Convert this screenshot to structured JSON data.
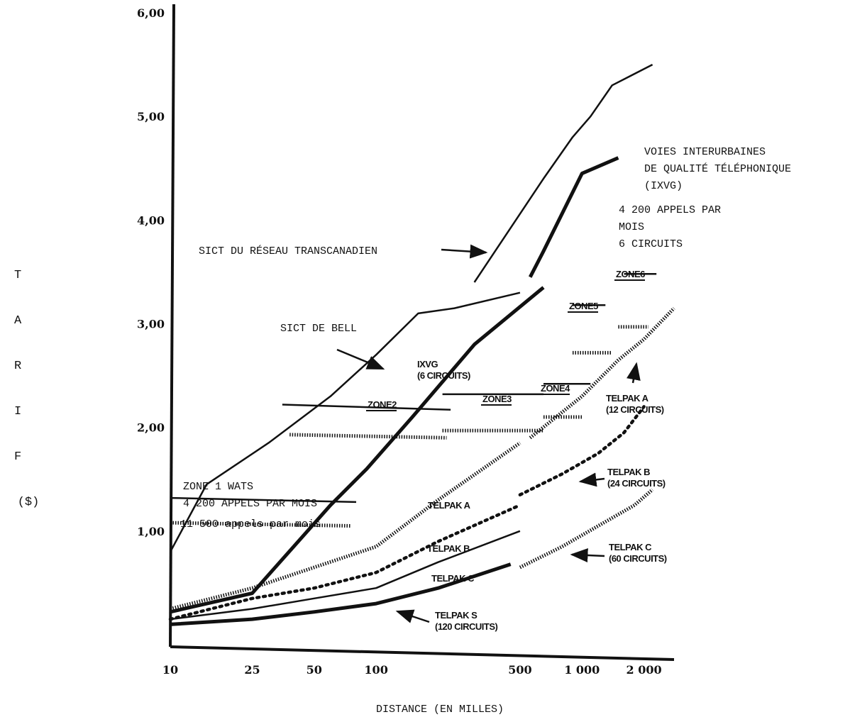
{
  "chart_data": {
    "type": "line",
    "title": "",
    "xlabel": "DISTANCE (EN MILLES)",
    "ylabel": "TARIF ($)",
    "x_scale": "log",
    "xlim": [
      10,
      2800
    ],
    "ylim": [
      0,
      6.0
    ],
    "x_ticks": [
      {
        "value": 10,
        "label": "10"
      },
      {
        "value": 25,
        "label": "25"
      },
      {
        "value": 50,
        "label": "50"
      },
      {
        "value": 100,
        "label": "100"
      },
      {
        "value": 500,
        "label": "500"
      },
      {
        "value": 1000,
        "label": "1 000"
      },
      {
        "value": 2000,
        "label": "2 000"
      }
    ],
    "y_ticks": [
      {
        "value": 1,
        "label": "1,00"
      },
      {
        "value": 2,
        "label": "2,00"
      },
      {
        "value": 3,
        "label": "3,00"
      },
      {
        "value": 4,
        "label": "4,00"
      },
      {
        "value": 5,
        "label": "5,00"
      },
      {
        "value": 6,
        "label": "6,00"
      }
    ],
    "grid": false,
    "series": [
      {
        "id": "sict-transcanadien",
        "style": "solid",
        "points": [
          [
            300,
            3.4
          ],
          [
            650,
            4.4
          ],
          [
            900,
            4.8
          ],
          [
            1100,
            5.0
          ],
          [
            1400,
            5.3
          ],
          [
            2200,
            5.5
          ]
        ]
      },
      {
        "id": "ixvg-4200",
        "style": "bold",
        "points": [
          [
            560,
            3.45
          ],
          [
            650,
            3.7
          ],
          [
            1000,
            4.45
          ],
          [
            1500,
            4.6
          ]
        ]
      },
      {
        "id": "sict-bell",
        "style": "solid",
        "points": [
          [
            10,
            0.8
          ],
          [
            15,
            1.45
          ],
          [
            30,
            1.85
          ],
          [
            60,
            2.3
          ],
          [
            100,
            2.7
          ],
          [
            160,
            3.1
          ],
          [
            240,
            3.15
          ],
          [
            500,
            3.3
          ]
        ]
      },
      {
        "id": "ixvg-6",
        "style": "bold",
        "points": [
          [
            10,
            0.22
          ],
          [
            25,
            0.4
          ],
          [
            60,
            1.25
          ],
          [
            90,
            1.6
          ],
          [
            150,
            2.1
          ],
          [
            300,
            2.8
          ],
          [
            650,
            3.35
          ]
        ]
      },
      {
        "id": "wats-4200",
        "style": "solid",
        "points": [
          [
            10,
            1.32
          ],
          [
            80,
            1.28
          ]
        ]
      },
      {
        "id": "wats-11500",
        "style": "hatched",
        "points": [
          [
            10,
            1.08
          ],
          [
            75,
            1.05
          ]
        ]
      },
      {
        "id": "zone2-solid",
        "style": "solid",
        "points": [
          [
            35,
            2.22
          ],
          [
            230,
            2.17
          ]
        ]
      },
      {
        "id": "zone2-hatched",
        "style": "hatched",
        "points": [
          [
            38,
            1.93
          ],
          [
            220,
            1.9
          ]
        ]
      },
      {
        "id": "zone3-solid",
        "style": "solid",
        "points": [
          [
            210,
            2.32
          ],
          [
            650,
            2.32
          ]
        ]
      },
      {
        "id": "zone3-hatched",
        "style": "hatched",
        "points": [
          [
            210,
            1.97
          ],
          [
            650,
            1.97
          ]
        ]
      },
      {
        "id": "zone4-solid",
        "style": "solid",
        "points": [
          [
            650,
            2.42
          ],
          [
            1100,
            2.42
          ]
        ]
      },
      {
        "id": "zone4-hatched",
        "style": "hatched",
        "points": [
          [
            650,
            2.1
          ],
          [
            1000,
            2.1
          ]
        ]
      },
      {
        "id": "zone5-solid",
        "style": "solid",
        "points": [
          [
            900,
            3.18
          ],
          [
            1300,
            3.18
          ]
        ]
      },
      {
        "id": "zone5-hatched",
        "style": "hatched",
        "points": [
          [
            900,
            2.72
          ],
          [
            1400,
            2.72
          ]
        ]
      },
      {
        "id": "zone6-solid",
        "style": "solid",
        "points": [
          [
            1600,
            3.48
          ],
          [
            2300,
            3.48
          ]
        ]
      },
      {
        "id": "zone6-hatched",
        "style": "hatched",
        "points": [
          [
            1500,
            2.97
          ],
          [
            2100,
            2.97
          ]
        ]
      },
      {
        "id": "telpak-a",
        "style": "hatched",
        "points": [
          [
            10,
            0.25
          ],
          [
            25,
            0.45
          ],
          [
            50,
            0.65
          ],
          [
            100,
            0.85
          ],
          [
            200,
            1.3
          ],
          [
            500,
            1.85
          ]
        ]
      },
      {
        "id": "telpak-a-right",
        "style": "hatched",
        "points": [
          [
            560,
            1.9
          ],
          [
            1000,
            2.3
          ],
          [
            1500,
            2.65
          ],
          [
            2000,
            2.85
          ],
          [
            2800,
            3.15
          ]
        ]
      },
      {
        "id": "telpak-b",
        "style": "dotted",
        "points": [
          [
            10,
            0.15
          ],
          [
            25,
            0.35
          ],
          [
            50,
            0.45
          ],
          [
            100,
            0.6
          ],
          [
            200,
            0.9
          ],
          [
            500,
            1.25
          ]
        ]
      },
      {
        "id": "telpak-b-right",
        "style": "dotted",
        "points": [
          [
            500,
            1.35
          ],
          [
            800,
            1.55
          ],
          [
            1200,
            1.75
          ],
          [
            1600,
            1.95
          ],
          [
            2000,
            2.2
          ]
        ]
      },
      {
        "id": "telpak-c",
        "style": "solid",
        "points": [
          [
            10,
            0.15
          ],
          [
            25,
            0.25
          ],
          [
            50,
            0.35
          ],
          [
            100,
            0.45
          ],
          [
            200,
            0.7
          ],
          [
            500,
            1.0
          ]
        ]
      },
      {
        "id": "telpak-c-right",
        "style": "hatched",
        "points": [
          [
            500,
            0.65
          ],
          [
            800,
            0.85
          ],
          [
            1200,
            1.05
          ],
          [
            1800,
            1.25
          ],
          [
            2200,
            1.4
          ]
        ]
      },
      {
        "id": "telpak-s",
        "style": "bold",
        "points": [
          [
            10,
            0.1
          ],
          [
            25,
            0.15
          ],
          [
            50,
            0.22
          ],
          [
            100,
            0.3
          ],
          [
            200,
            0.45
          ],
          [
            450,
            0.68
          ]
        ]
      }
    ],
    "annotations": [
      {
        "id": "ann-transcanadien",
        "lines": [
          "SICT DU RÉSEAU TRANSCANADIEN"
        ],
        "font": "serif",
        "pos": [
          280,
          358
        ],
        "arrow": [
          [
            622,
            352
          ],
          [
            685,
            356
          ]
        ]
      },
      {
        "id": "ann-voies",
        "lines": [
          "VOIES INTERURBAINES",
          "DE QUALITÉ TÉLÉPHONIQUE",
          "(IXVG)"
        ],
        "font": "serif",
        "pos": [
          908,
          218
        ],
        "arrow": null
      },
      {
        "id": "ann-4200-ixvg",
        "lines": [
          "4 200 APPELS PAR",
          "MOIS",
          "6 CIRCUITS"
        ],
        "font": "serif",
        "pos": [
          872,
          300
        ],
        "arrow": null
      },
      {
        "id": "ann-bell",
        "lines": [
          "SICT DE BELL"
        ],
        "font": "serif",
        "pos": [
          395,
          467
        ],
        "arrow": [
          [
            475,
            493
          ],
          [
            540,
            520
          ]
        ]
      },
      {
        "id": "ann-ixvg-6",
        "lines": [
          "IXVG",
          "(6 CIRCUITS)"
        ],
        "font": "sans",
        "pos": [
          588,
          518
        ],
        "arrow": null
      },
      {
        "id": "ann-zone2",
        "lines": [
          "ZONE2"
        ],
        "font": "sans",
        "pos": [
          518,
          575
        ],
        "arrow": null
      },
      {
        "id": "ann-zone3",
        "lines": [
          "ZONE3"
        ],
        "font": "sans",
        "pos": [
          680,
          567
        ],
        "arrow": null
      },
      {
        "id": "ann-zone4",
        "lines": [
          "ZONE4"
        ],
        "font": "sans",
        "pos": [
          762,
          552
        ],
        "arrow": null
      },
      {
        "id": "ann-zone5",
        "lines": [
          "ZONE5"
        ],
        "font": "sans",
        "pos": [
          802,
          436
        ],
        "arrow": null
      },
      {
        "id": "ann-zone6",
        "lines": [
          "ZONE6"
        ],
        "font": "sans",
        "pos": [
          868,
          391
        ],
        "arrow": null
      },
      {
        "id": "ann-wats",
        "lines": [
          "ZONE 1 WATS",
          "4 200 APPELS PAR MOIS"
        ],
        "font": "serif",
        "pos": [
          258,
          690
        ],
        "arrow": null
      },
      {
        "id": "ann-wats-11500",
        "lines": [
          "11 500 appels par mois"
        ],
        "font": "serif",
        "pos": [
          254,
          743
        ],
        "arrow": null
      },
      {
        "id": "ann-telpak-a",
        "lines": [
          "TELPAK A"
        ],
        "font": "sans",
        "pos": [
          603,
          717
        ],
        "arrow": null
      },
      {
        "id": "ann-telpak-b",
        "lines": [
          "TELPAK B"
        ],
        "font": "sans",
        "pos": [
          602,
          778
        ],
        "arrow": null
      },
      {
        "id": "ann-telpak-c",
        "lines": [
          "TELPAK C"
        ],
        "font": "sans",
        "pos": [
          608,
          820
        ],
        "arrow": null
      },
      {
        "id": "ann-telpak-s",
        "lines": [
          "TELPAK S",
          "(120 CIRCUITS)"
        ],
        "font": "sans",
        "pos": [
          613,
          872
        ],
        "arrow": [
          [
            605,
            877
          ],
          [
            560,
            862
          ]
        ]
      },
      {
        "id": "ann-telpak-a-12",
        "lines": [
          "TELPAK A",
          "(12 CIRCUITS)"
        ],
        "font": "sans",
        "pos": [
          854,
          566
        ],
        "arrow": [
          [
            892,
            540
          ],
          [
            897,
            513
          ]
        ]
      },
      {
        "id": "ann-telpak-b-24",
        "lines": [
          "TELPAK B",
          "(24 CIRCUITS)"
        ],
        "font": "sans",
        "pos": [
          856,
          670
        ],
        "arrow": [
          [
            852,
            675
          ],
          [
            818,
            679
          ]
        ]
      },
      {
        "id": "ann-telpak-c-60",
        "lines": [
          "TELPAK C",
          "(60 CIRCUITS)"
        ],
        "font": "sans",
        "pos": [
          858,
          776
        ],
        "arrow": [
          [
            852,
            784
          ],
          [
            806,
            782
          ]
        ]
      }
    ]
  }
}
